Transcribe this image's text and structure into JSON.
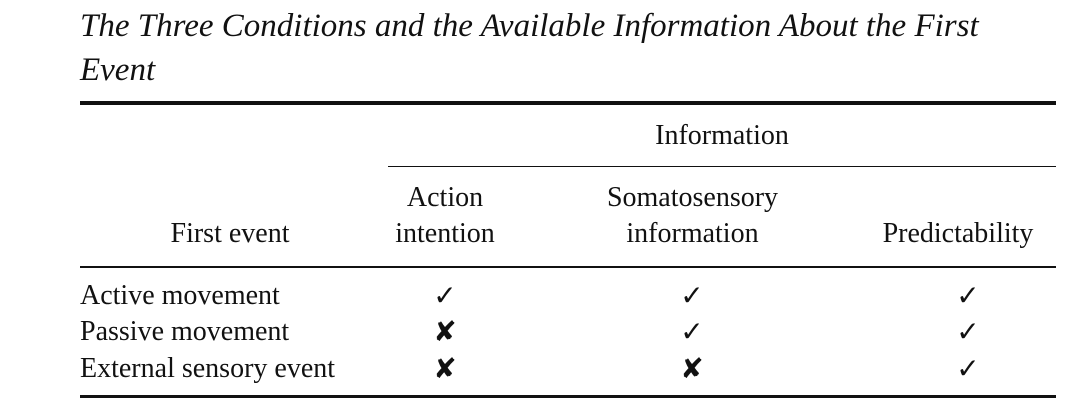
{
  "caption": {
    "line1": "The Three Conditions and the Available Information About the First",
    "line2": "Event"
  },
  "table": {
    "group_header": "Information",
    "columns": {
      "first_event": "First event",
      "action_intention": [
        "Action",
        "intention"
      ],
      "somatosensory": [
        "Somatosensory",
        "information"
      ],
      "predictability": "Predictability"
    },
    "rows": [
      {
        "label": "Active movement",
        "action": "✓",
        "soma": "✓",
        "pred": "✓"
      },
      {
        "label": "Passive movement",
        "action": "✘",
        "soma": "✓",
        "pred": "✓"
      },
      {
        "label": "External sensory event",
        "action": "✘",
        "soma": "✘",
        "pred": "✓"
      }
    ]
  },
  "icons": {
    "yes": "check-icon",
    "no": "cross-icon"
  }
}
